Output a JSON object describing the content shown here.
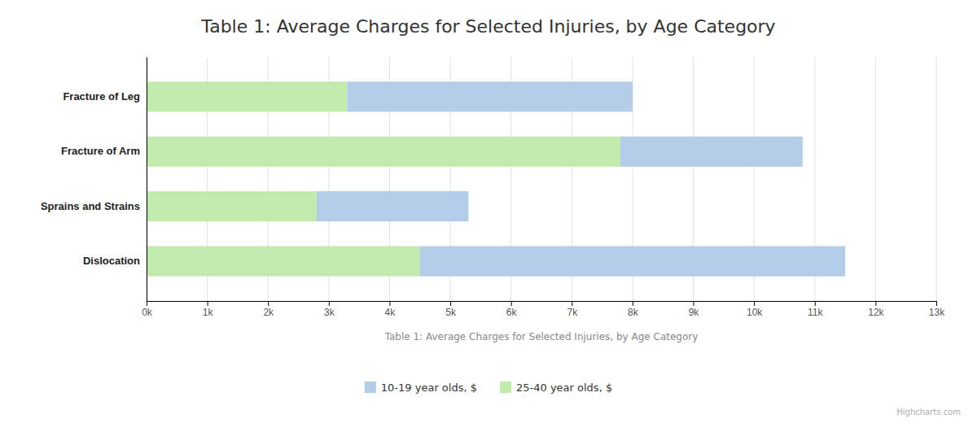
{
  "chart_data": {
    "type": "bar",
    "orientation": "horizontal",
    "stacked": true,
    "title": "Table 1: Average Charges for Selected Injuries, by Age Category",
    "xlabel": "Table 1: Average Charges for Selected Injuries, by Age Category",
    "annotations": [
      "Highcharts.com"
    ],
    "categories": [
      "Fracture of Leg",
      "Fracture of Arm",
      "Sprains and Strains",
      "Dislocation"
    ],
    "series": [
      {
        "name": "25-40 year olds, $",
        "color": "#c3eaad",
        "values": [
          3300,
          7800,
          2800,
          4500
        ]
      },
      {
        "name": "10-19 year olds, $",
        "color": "#b3cce8",
        "values": [
          4700,
          3000,
          2500,
          7000
        ]
      }
    ],
    "xlim": [
      0,
      13000
    ],
    "xticks": [
      {
        "value": 0,
        "label": "0k"
      },
      {
        "value": 1000,
        "label": "1k"
      },
      {
        "value": 2000,
        "label": "2k"
      },
      {
        "value": 3000,
        "label": "3k"
      },
      {
        "value": 4000,
        "label": "4k"
      },
      {
        "value": 5000,
        "label": "5k"
      },
      {
        "value": 6000,
        "label": "6k"
      },
      {
        "value": 7000,
        "label": "7k"
      },
      {
        "value": 8000,
        "label": "8k"
      },
      {
        "value": 9000,
        "label": "9k"
      },
      {
        "value": 10000,
        "label": "10k"
      },
      {
        "value": 11000,
        "label": "11k"
      },
      {
        "value": 12000,
        "label": "12k"
      },
      {
        "value": 13000,
        "label": "13k"
      }
    ],
    "grid": true,
    "legend": "bottom"
  }
}
